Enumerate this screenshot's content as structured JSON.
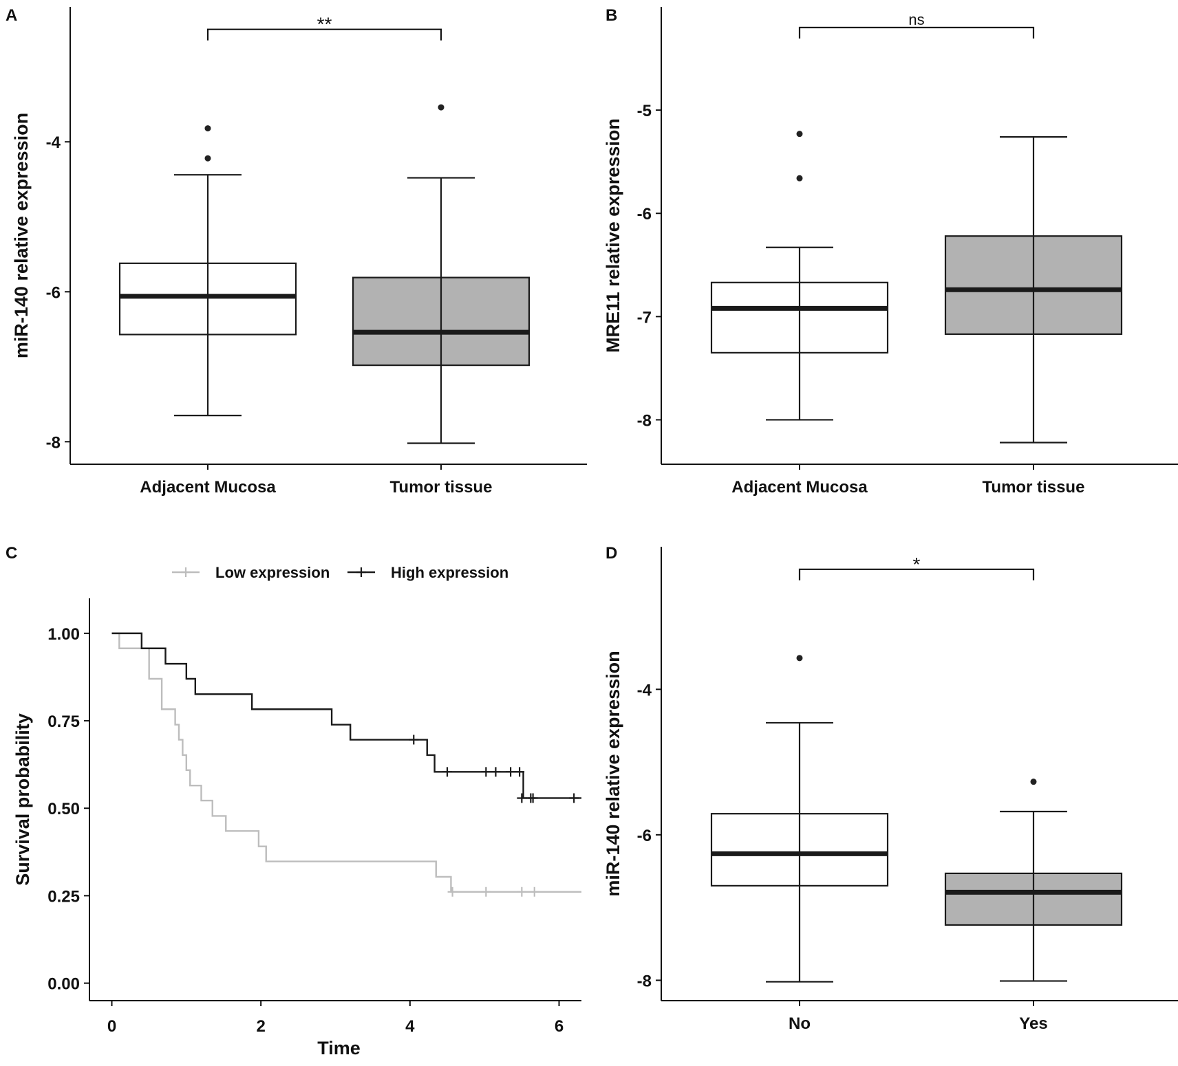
{
  "figure": {
    "panel_letters": [
      "A",
      "B",
      "C",
      "D"
    ]
  },
  "colors": {
    "box_fill_tumor": "#b2b2b2",
    "box_fill_normal": "#ffffff",
    "line_dark": "#1a1a1a",
    "km_low": "#bdbdbd",
    "km_high": "#1a1a1a"
  },
  "chart_data": [
    {
      "panel": "A",
      "type": "box",
      "ylabel": "miR-140 relative expression",
      "xlabel": "",
      "categories": [
        "Adjacent Mucosa",
        "Tumor tissue"
      ],
      "yticks": [
        -4,
        -6,
        -8
      ],
      "ytick_labels": [
        "-4",
        "-6",
        "-8"
      ],
      "ylim": [
        -8.3,
        -2.2
      ],
      "grid": false,
      "boxes": [
        {
          "name": "Adjacent Mucosa",
          "whisker_low": -7.65,
          "q1": -6.57,
          "median": -6.06,
          "q3": -5.62,
          "whisker_high": -4.44,
          "outliers": [
            -3.82,
            -4.22
          ],
          "fill": "white"
        },
        {
          "name": "Tumor tissue",
          "whisker_low": -8.02,
          "q1": -6.98,
          "median": -6.54,
          "q3": -5.81,
          "whisker_high": -4.48,
          "outliers": [
            -3.54
          ],
          "fill": "gray"
        }
      ],
      "significance": {
        "label": "**",
        "between": [
          "Adjacent Mucosa",
          "Tumor tissue"
        ],
        "y": -2.5
      }
    },
    {
      "panel": "B",
      "type": "box",
      "ylabel": "MRE11 relative expression",
      "xlabel": "",
      "categories": [
        "Adjacent Mucosa",
        "Tumor tissue"
      ],
      "yticks": [
        -5,
        -6,
        -7,
        -8
      ],
      "ytick_labels": [
        "-5",
        "-6",
        "-7",
        "-8"
      ],
      "ylim": [
        -8.43,
        -4.0
      ],
      "grid": false,
      "boxes": [
        {
          "name": "Adjacent Mucosa",
          "whisker_low": -8.0,
          "q1": -7.35,
          "median": -6.92,
          "q3": -6.67,
          "whisker_high": -6.33,
          "outliers": [
            -5.23,
            -5.66
          ],
          "fill": "white"
        },
        {
          "name": "Tumor tissue",
          "whisker_low": -8.22,
          "q1": -7.17,
          "median": -6.74,
          "q3": -6.22,
          "whisker_high": -5.26,
          "outliers": [],
          "fill": "gray"
        }
      ],
      "significance": {
        "label": "ns",
        "between": [
          "Adjacent Mucosa",
          "Tumor tissue"
        ],
        "y": -4.2
      }
    },
    {
      "panel": "C",
      "type": "line",
      "subtype": "kaplan-meier",
      "xlabel": "Time",
      "ylabel": "Survival probability",
      "xlim": [
        -0.3,
        6.3
      ],
      "ylim": [
        -0.05,
        1.1
      ],
      "xticks": [
        0,
        2,
        4,
        6
      ],
      "xtick_labels": [
        "0",
        "2",
        "4",
        "6"
      ],
      "yticks": [
        0.0,
        0.25,
        0.5,
        0.75,
        1.0
      ],
      "ytick_labels": [
        "0.00",
        "0.25",
        "0.50",
        "0.75",
        "1.00"
      ],
      "legend": {
        "position": "top",
        "entries": [
          "Low expression",
          "High expression"
        ]
      },
      "series": [
        {
          "name": "Low expression",
          "color": "#bdbdbd",
          "steps": [
            [
              0.0,
              1.0
            ],
            [
              0.1,
              0.957
            ],
            [
              0.5,
              0.87
            ],
            [
              0.67,
              0.783
            ],
            [
              0.85,
              0.739
            ],
            [
              0.9,
              0.696
            ],
            [
              0.95,
              0.652
            ],
            [
              1.0,
              0.609
            ],
            [
              1.05,
              0.565
            ],
            [
              1.2,
              0.522
            ],
            [
              1.35,
              0.478
            ],
            [
              1.53,
              0.435
            ],
            [
              1.97,
              0.391
            ],
            [
              2.07,
              0.348
            ],
            [
              4.35,
              0.304
            ],
            [
              4.55,
              0.261
            ],
            [
              6.3,
              0.261
            ]
          ],
          "censored": [
            [
              4.57,
              0.261
            ],
            [
              5.02,
              0.261
            ],
            [
              5.5,
              0.261
            ],
            [
              5.67,
              0.261
            ]
          ]
        },
        {
          "name": "High expression",
          "color": "#1a1a1a",
          "steps": [
            [
              0.0,
              1.0
            ],
            [
              0.4,
              0.957
            ],
            [
              0.72,
              0.913
            ],
            [
              1.0,
              0.87
            ],
            [
              1.12,
              0.826
            ],
            [
              1.88,
              0.783
            ],
            [
              2.95,
              0.739
            ],
            [
              3.2,
              0.696
            ],
            [
              4.23,
              0.652
            ],
            [
              4.33,
              0.604
            ],
            [
              5.52,
              0.529
            ],
            [
              6.3,
              0.529
            ]
          ],
          "censored": [
            [
              4.05,
              0.696
            ],
            [
              4.5,
              0.604
            ],
            [
              5.02,
              0.604
            ],
            [
              5.15,
              0.604
            ],
            [
              5.35,
              0.604
            ],
            [
              5.47,
              0.604
            ],
            [
              5.5,
              0.529
            ],
            [
              5.62,
              0.529
            ],
            [
              5.65,
              0.529
            ],
            [
              6.2,
              0.529
            ]
          ]
        }
      ]
    },
    {
      "panel": "D",
      "type": "box",
      "ylabel": "miR-140 relative expression",
      "xlabel": "",
      "categories": [
        "No",
        "Yes"
      ],
      "yticks": [
        -4,
        -6,
        -8
      ],
      "ytick_labels": [
        "-4",
        "-6",
        "-8"
      ],
      "ylim": [
        -8.28,
        -2.04
      ],
      "grid": false,
      "boxes": [
        {
          "name": "No",
          "whisker_low": -8.02,
          "q1": -6.7,
          "median": -6.26,
          "q3": -5.71,
          "whisker_high": -4.46,
          "outliers": [
            -3.57
          ],
          "fill": "white"
        },
        {
          "name": "Yes",
          "whisker_low": -8.01,
          "q1": -7.24,
          "median": -6.79,
          "q3": -6.53,
          "whisker_high": -5.68,
          "outliers": [
            -5.27
          ],
          "fill": "gray"
        }
      ],
      "significance": {
        "label": "*",
        "between": [
          "No",
          "Yes"
        ],
        "y": -2.35
      }
    }
  ]
}
